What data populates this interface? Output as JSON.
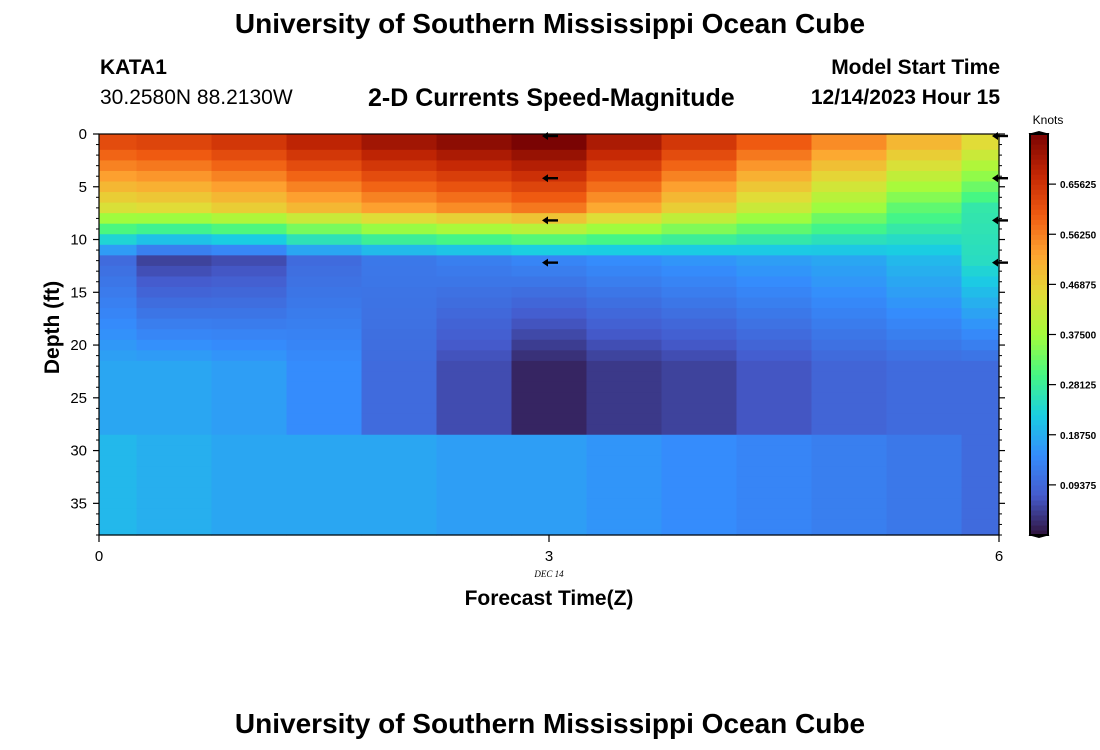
{
  "header": {
    "title": "University of Southern Mississippi Ocean Cube",
    "station": "KATA1",
    "coords": "30.2580N  88.2130W",
    "subtitle": "2-D Currents Speed-Magnitude",
    "model_start_label": "Model Start Time",
    "model_start_value": "12/14/2023 Hour 15"
  },
  "footer": {
    "title": "University of Southern Mississippi Ocean Cube"
  },
  "chart_data": {
    "type": "heatmap",
    "title": "2-D Currents Speed-Magnitude",
    "xlabel": "Forecast Time(Z)",
    "ylabel": "Depth (ft)",
    "x_date_label": "DEC 14",
    "xlim": [
      0,
      6
    ],
    "ylim": [
      38,
      0
    ],
    "x_ticks": [
      0,
      3,
      6
    ],
    "x_tick_labels": [
      "0",
      "3",
      "6"
    ],
    "y_ticks": [
      0,
      5,
      10,
      15,
      20,
      25,
      30,
      35
    ],
    "y_tick_labels": [
      "0",
      "5",
      "10",
      "15",
      "20",
      "25",
      "30",
      "35"
    ],
    "colorbar": {
      "label": "Knots",
      "min": 0.0,
      "max": 0.75,
      "ticks": [
        0.09375,
        0.1875,
        0.28125,
        0.375,
        0.46875,
        0.5625,
        0.65625
      ],
      "tick_labels": [
        "0.09375",
        "0.18750",
        "0.28125",
        "0.37500",
        "0.46875",
        "0.56250",
        "0.65625"
      ]
    },
    "time_columns": [
      0,
      0.5,
      1,
      1.5,
      2,
      2.5,
      3,
      3.5,
      4,
      4.5,
      5,
      5.5,
      6
    ],
    "depth_rows": [
      0,
      1,
      2,
      3,
      4,
      5,
      6,
      7,
      8,
      9,
      10,
      11,
      12,
      13,
      14,
      15,
      16,
      17,
      18,
      19,
      20,
      21,
      22,
      23,
      24,
      25,
      26,
      27,
      28,
      29,
      30,
      31,
      32,
      33,
      34,
      35,
      36,
      37,
      38
    ],
    "column_profiles": [
      {
        "surface": 0.62,
        "mid": 0.1,
        "low": 0.18,
        "bottom": 0.2
      },
      {
        "surface": 0.63,
        "mid": 0.05,
        "low": 0.18,
        "bottom": 0.19
      },
      {
        "surface": 0.65,
        "mid": 0.06,
        "low": 0.17,
        "bottom": 0.18
      },
      {
        "surface": 0.68,
        "mid": 0.1,
        "low": 0.15,
        "bottom": 0.18
      },
      {
        "surface": 0.71,
        "mid": 0.12,
        "low": 0.1,
        "bottom": 0.18
      },
      {
        "surface": 0.73,
        "mid": 0.13,
        "low": 0.06,
        "bottom": 0.17
      },
      {
        "surface": 0.75,
        "mid": 0.14,
        "low": 0.02,
        "bottom": 0.17
      },
      {
        "surface": 0.7,
        "mid": 0.15,
        "low": 0.04,
        "bottom": 0.16
      },
      {
        "surface": 0.65,
        "mid": 0.16,
        "low": 0.05,
        "bottom": 0.15
      },
      {
        "surface": 0.6,
        "mid": 0.17,
        "low": 0.07,
        "bottom": 0.14
      },
      {
        "surface": 0.55,
        "mid": 0.18,
        "low": 0.09,
        "bottom": 0.13
      },
      {
        "surface": 0.5,
        "mid": 0.2,
        "low": 0.1,
        "bottom": 0.12
      },
      {
        "surface": 0.45,
        "mid": 0.25,
        "low": 0.1,
        "bottom": 0.1
      }
    ],
    "vectors": [
      {
        "time": 3,
        "depth": 0,
        "direction": "west"
      },
      {
        "time": 3,
        "depth": 4,
        "direction": "west"
      },
      {
        "time": 3,
        "depth": 8,
        "direction": "west"
      },
      {
        "time": 3,
        "depth": 12,
        "direction": "west"
      },
      {
        "time": 6,
        "depth": 0,
        "direction": "west"
      },
      {
        "time": 6,
        "depth": 4,
        "direction": "west"
      },
      {
        "time": 6,
        "depth": 8,
        "direction": "west"
      },
      {
        "time": 6,
        "depth": 12,
        "direction": "west"
      }
    ]
  }
}
